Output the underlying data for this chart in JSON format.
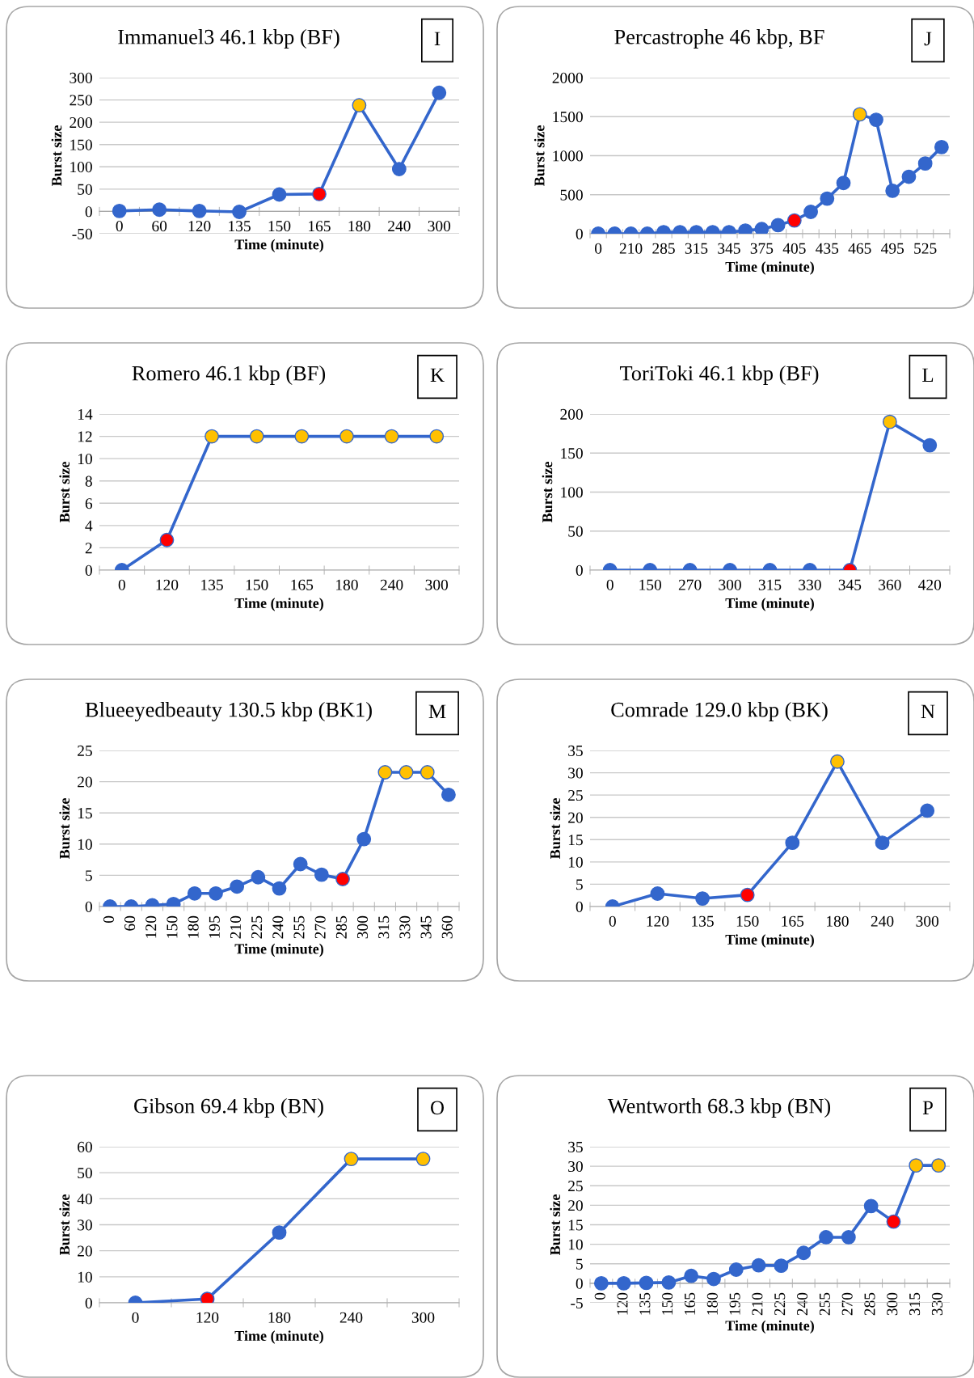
{
  "chart_data": [
    {
      "type": "line",
      "title": "Immanuel3 46.1 kbp (BF)",
      "xlabel": "Time (minute)",
      "ylabel": "Burst size",
      "annotations": [
        "I"
      ],
      "grid": "y",
      "marker": "circle",
      "ylim": [
        -50,
        300
      ],
      "yticks": [
        -50,
        0,
        50,
        100,
        150,
        200,
        250,
        300
      ],
      "categories": [
        "0",
        "60",
        "120",
        "135",
        "150",
        "165",
        "180",
        "240",
        "300"
      ],
      "series": [
        {
          "color": "#3366cc",
          "colors": [
            "#3366cc",
            "#3366cc",
            "#3366cc",
            "#3366cc",
            "#3366cc",
            "#ff0000",
            "#ffc000",
            "#3366cc",
            "#3366cc"
          ],
          "values": [
            1,
            4,
            1,
            -1,
            38,
            39,
            238,
            95,
            266
          ]
        }
      ]
    },
    {
      "type": "line",
      "title": "Percastrophe 46 kbp, BF",
      "xlabel": "Time (minute)",
      "ylabel": "Burst size",
      "annotations": [
        "J"
      ],
      "grid": "y",
      "marker": "circle",
      "ylim": [
        0,
        2000
      ],
      "yticks": [
        0,
        500,
        1000,
        1500,
        2000
      ],
      "categories": [
        "0",
        null,
        "210",
        null,
        "285",
        null,
        "315",
        null,
        "345",
        null,
        "375",
        null,
        "405",
        null,
        "435",
        null,
        "465",
        null,
        "495",
        null,
        "525",
        null
      ],
      "series": [
        {
          "color": "#3366cc",
          "colors": [
            "#3366cc",
            "#3366cc",
            "#3366cc",
            "#3366cc",
            "#3366cc",
            "#3366cc",
            "#3366cc",
            "#3366cc",
            "#3366cc",
            "#3366cc",
            "#3366cc",
            "#3366cc",
            "#ff0000",
            "#3366cc",
            "#3366cc",
            "#3366cc",
            "#ffc000",
            "#3366cc",
            "#3366cc",
            "#3366cc",
            "#3366cc",
            "#3366cc"
          ],
          "values": [
            0,
            0,
            0,
            0,
            20,
            20,
            20,
            20,
            20,
            40,
            60,
            110,
            170,
            280,
            450,
            650,
            1530,
            1460,
            550,
            730,
            900,
            1110
          ]
        }
      ]
    },
    {
      "type": "line",
      "title": "Romero 46.1 kbp (BF)",
      "xlabel": "Time (minute)",
      "ylabel": "Burst size",
      "annotations": [
        "K"
      ],
      "grid": "y",
      "marker": "circle",
      "ylim": [
        0,
        14
      ],
      "yticks": [
        0,
        2,
        4,
        6,
        8,
        10,
        12,
        14
      ],
      "categories": [
        "0",
        "120",
        "135",
        "150",
        "165",
        "180",
        "240",
        "300"
      ],
      "series": [
        {
          "color": "#3366cc",
          "colors": [
            "#3366cc",
            "#ff0000",
            "#ffc000",
            "#ffc000",
            "#ffc000",
            "#ffc000",
            "#ffc000",
            "#ffc000"
          ],
          "values": [
            0,
            2.7,
            12,
            12,
            12,
            12,
            12,
            12
          ]
        }
      ]
    },
    {
      "type": "line",
      "title": "ToriToki 46.1 kbp (BF)",
      "xlabel": "Time (minute)",
      "ylabel": "Burst size",
      "annotations": [
        "L"
      ],
      "grid": "y",
      "marker": "circle",
      "ylim": [
        0,
        200
      ],
      "yticks": [
        0,
        50,
        100,
        150,
        200
      ],
      "categories": [
        "0",
        "150",
        "270",
        "300",
        "315",
        "330",
        "345",
        "360",
        "420"
      ],
      "series": [
        {
          "color": "#3366cc",
          "colors": [
            "#3366cc",
            "#3366cc",
            "#3366cc",
            "#3366cc",
            "#3366cc",
            "#3366cc",
            "#ff0000",
            "#ffc000",
            "#3366cc"
          ],
          "values": [
            0,
            0,
            0,
            0,
            0,
            0,
            0,
            190,
            160
          ]
        }
      ]
    },
    {
      "type": "line",
      "title": "Blueeyedbeauty 130.5 kbp (BK1)",
      "xlabel": "Time (minute)",
      "ylabel": "Burst size",
      "annotations": [
        "M"
      ],
      "grid": "y",
      "marker": "circle",
      "ylim": [
        0,
        25
      ],
      "yticks": [
        0,
        5,
        10,
        15,
        20,
        25
      ],
      "categories": [
        "0",
        "60",
        "120",
        "150",
        "180",
        "195",
        "210",
        "225",
        "240",
        "255",
        "270",
        "285",
        "300",
        "315",
        "330",
        "345",
        "360"
      ],
      "series": [
        {
          "color": "#3366cc",
          "colors": [
            "#3366cc",
            "#3366cc",
            "#3366cc",
            "#3366cc",
            "#3366cc",
            "#3366cc",
            "#3366cc",
            "#3366cc",
            "#3366cc",
            "#3366cc",
            "#3366cc",
            "#ff0000",
            "#3366cc",
            "#ffc000",
            "#ffc000",
            "#ffc000",
            "#3366cc"
          ],
          "values": [
            0,
            0,
            0.2,
            0.4,
            2.1,
            2.1,
            3.2,
            4.7,
            2.9,
            6.8,
            5.1,
            4.4,
            10.8,
            21.5,
            21.5,
            21.5,
            17.9
          ]
        }
      ]
    },
    {
      "type": "line",
      "title": "Comrade 129.0 kbp (BK)",
      "xlabel": "Time (minute)",
      "ylabel": "Burst size",
      "annotations": [
        "N"
      ],
      "grid": "y",
      "marker": "circle",
      "ylim": [
        0,
        35
      ],
      "yticks": [
        0,
        5,
        10,
        15,
        20,
        25,
        30,
        35
      ],
      "categories": [
        "0",
        "120",
        "135",
        "150",
        "165",
        "180",
        "240",
        "300"
      ],
      "series": [
        {
          "color": "#3366cc",
          "colors": [
            "#3366cc",
            "#3366cc",
            "#3366cc",
            "#ff0000",
            "#3366cc",
            "#ffc000",
            "#3366cc",
            "#3366cc"
          ],
          "values": [
            0,
            2.9,
            1.8,
            2.6,
            14.3,
            32.5,
            14.3,
            21.5
          ]
        }
      ]
    },
    {
      "type": "line",
      "title": "Gibson 69.4 kbp (BN)",
      "xlabel": "Time (minute)",
      "ylabel": "Burst size",
      "annotations": [
        "O"
      ],
      "grid": "y",
      "marker": "circle",
      "ylim": [
        0,
        60
      ],
      "yticks": [
        0,
        10,
        20,
        30,
        40,
        50,
        60
      ],
      "categories": [
        "0",
        "120",
        "180",
        "240",
        "300"
      ],
      "series": [
        {
          "color": "#3366cc",
          "colors": [
            "#3366cc",
            "#ff0000",
            "#3366cc",
            "#ffc000",
            "#ffc000"
          ],
          "values": [
            0,
            1.5,
            27,
            55.3,
            55.3
          ]
        }
      ]
    },
    {
      "type": "line",
      "title": "Wentworth 68.3 kbp (BN)",
      "xlabel": "Time (minute)",
      "ylabel": "Burst size",
      "annotations": [
        "P"
      ],
      "grid": "y",
      "marker": "circle",
      "ylim": [
        -5,
        35
      ],
      "yticks": [
        -5,
        0,
        5,
        10,
        15,
        20,
        25,
        30,
        35
      ],
      "categories": [
        "0",
        "120",
        "135",
        "150",
        "165",
        "180",
        "195",
        "210",
        "225",
        "240",
        "255",
        "270",
        "285",
        "300",
        "315",
        "330"
      ],
      "series": [
        {
          "color": "#3366cc",
          "colors": [
            "#3366cc",
            "#3366cc",
            "#3366cc",
            "#3366cc",
            "#3366cc",
            "#3366cc",
            "#3366cc",
            "#3366cc",
            "#3366cc",
            "#3366cc",
            "#3366cc",
            "#3366cc",
            "#3366cc",
            "#ff0000",
            "#ffc000",
            "#ffc000"
          ],
          "values": [
            0,
            0,
            0.1,
            0.2,
            1.9,
            1.1,
            3.5,
            4.6,
            4.5,
            7.8,
            11.8,
            11.8,
            19.8,
            15.8,
            30.2,
            30.2
          ]
        }
      ]
    }
  ]
}
